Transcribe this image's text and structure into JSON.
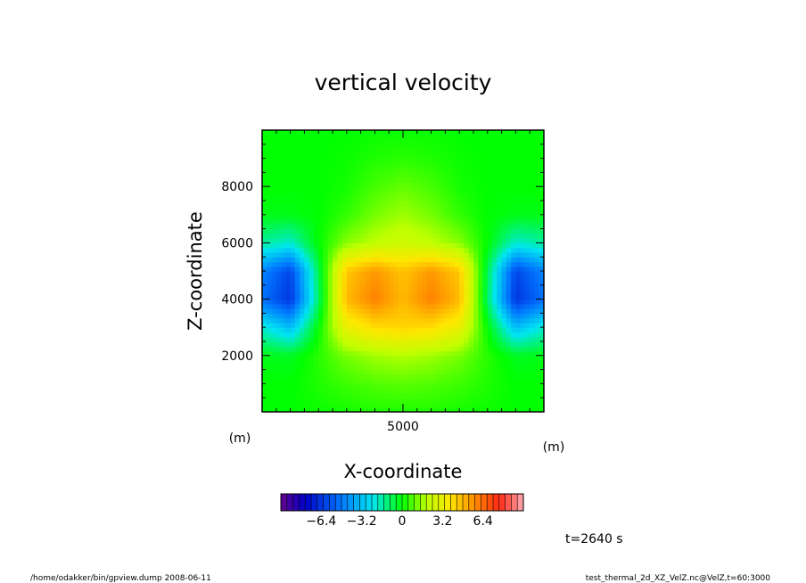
{
  "chart_data": {
    "type": "heatmap",
    "title": "vertical velocity",
    "xlabel": "X-coordinate",
    "ylabel": "Z-coordinate",
    "x_units": "(m)",
    "y_units": "(m)",
    "xlim": [
      0,
      10000
    ],
    "ylim": [
      0,
      10000
    ],
    "xticks": [
      {
        "value": 5000,
        "label": "5000"
      }
    ],
    "yticks": [
      {
        "value": 2000,
        "label": "2000"
      },
      {
        "value": 4000,
        "label": "4000"
      },
      {
        "value": 6000,
        "label": "6000"
      },
      {
        "value": 8000,
        "label": "8000"
      }
    ],
    "x": [
      0,
      1000,
      2000,
      3000,
      4000,
      5000,
      6000,
      7000,
      8000,
      9000,
      10000
    ],
    "z": [
      0,
      1000,
      2000,
      3000,
      4000,
      5000,
      6000,
      7000,
      8000,
      9000,
      10000
    ],
    "values": [
      [
        0.0,
        0.0,
        0.1,
        0.2,
        0.3,
        0.3,
        0.3,
        0.2,
        0.1,
        0.0,
        0.0
      ],
      [
        0.0,
        0.0,
        0.3,
        0.6,
        0.8,
        0.9,
        0.8,
        0.6,
        0.3,
        0.0,
        0.0
      ],
      [
        -0.2,
        -0.3,
        0.4,
        1.2,
        1.6,
        1.8,
        1.6,
        1.2,
        0.4,
        -0.3,
        -0.2
      ],
      [
        -2.0,
        -3.2,
        0.0,
        3.2,
        4.0,
        4.2,
        4.0,
        3.2,
        0.0,
        -3.2,
        -2.0
      ],
      [
        -5.0,
        -6.4,
        -1.0,
        4.8,
        6.0,
        4.8,
        6.0,
        4.8,
        -1.0,
        -6.4,
        -5.0
      ],
      [
        -4.5,
        -6.0,
        -0.8,
        4.5,
        5.5,
        4.6,
        5.5,
        4.5,
        -0.8,
        -6.0,
        -4.5
      ],
      [
        -1.5,
        -2.0,
        0.0,
        1.4,
        2.0,
        2.4,
        2.0,
        1.4,
        0.0,
        -2.0,
        -1.5
      ],
      [
        -0.2,
        -0.2,
        0.0,
        0.5,
        1.2,
        1.6,
        1.2,
        0.5,
        0.0,
        -0.2,
        -0.2
      ],
      [
        0.0,
        0.0,
        0.0,
        0.2,
        0.7,
        1.0,
        0.7,
        0.2,
        0.0,
        0.0,
        0.0
      ],
      [
        0.0,
        0.0,
        0.0,
        0.1,
        0.3,
        0.4,
        0.3,
        0.1,
        0.0,
        0.0,
        0.0
      ],
      [
        0.0,
        0.0,
        0.0,
        0.0,
        0.1,
        0.1,
        0.1,
        0.0,
        0.0,
        0.0,
        0.0
      ]
    ],
    "colorbar": {
      "range": [
        -9.6,
        9.6
      ],
      "ticks": [
        {
          "value": -6.4,
          "label": "−6.4"
        },
        {
          "value": -3.2,
          "label": "−3.2"
        },
        {
          "value": 0,
          "label": "0"
        },
        {
          "value": 3.2,
          "label": "3.2"
        },
        {
          "value": 6.4,
          "label": "6.4"
        }
      ]
    },
    "time_label": "t=2640 s"
  },
  "footer": {
    "left": "/home/odakker/bin/gpview.dump  2008-06-11",
    "right": "test_thermal_2d_XZ_VelZ.nc@VelZ,t=60:3000"
  }
}
